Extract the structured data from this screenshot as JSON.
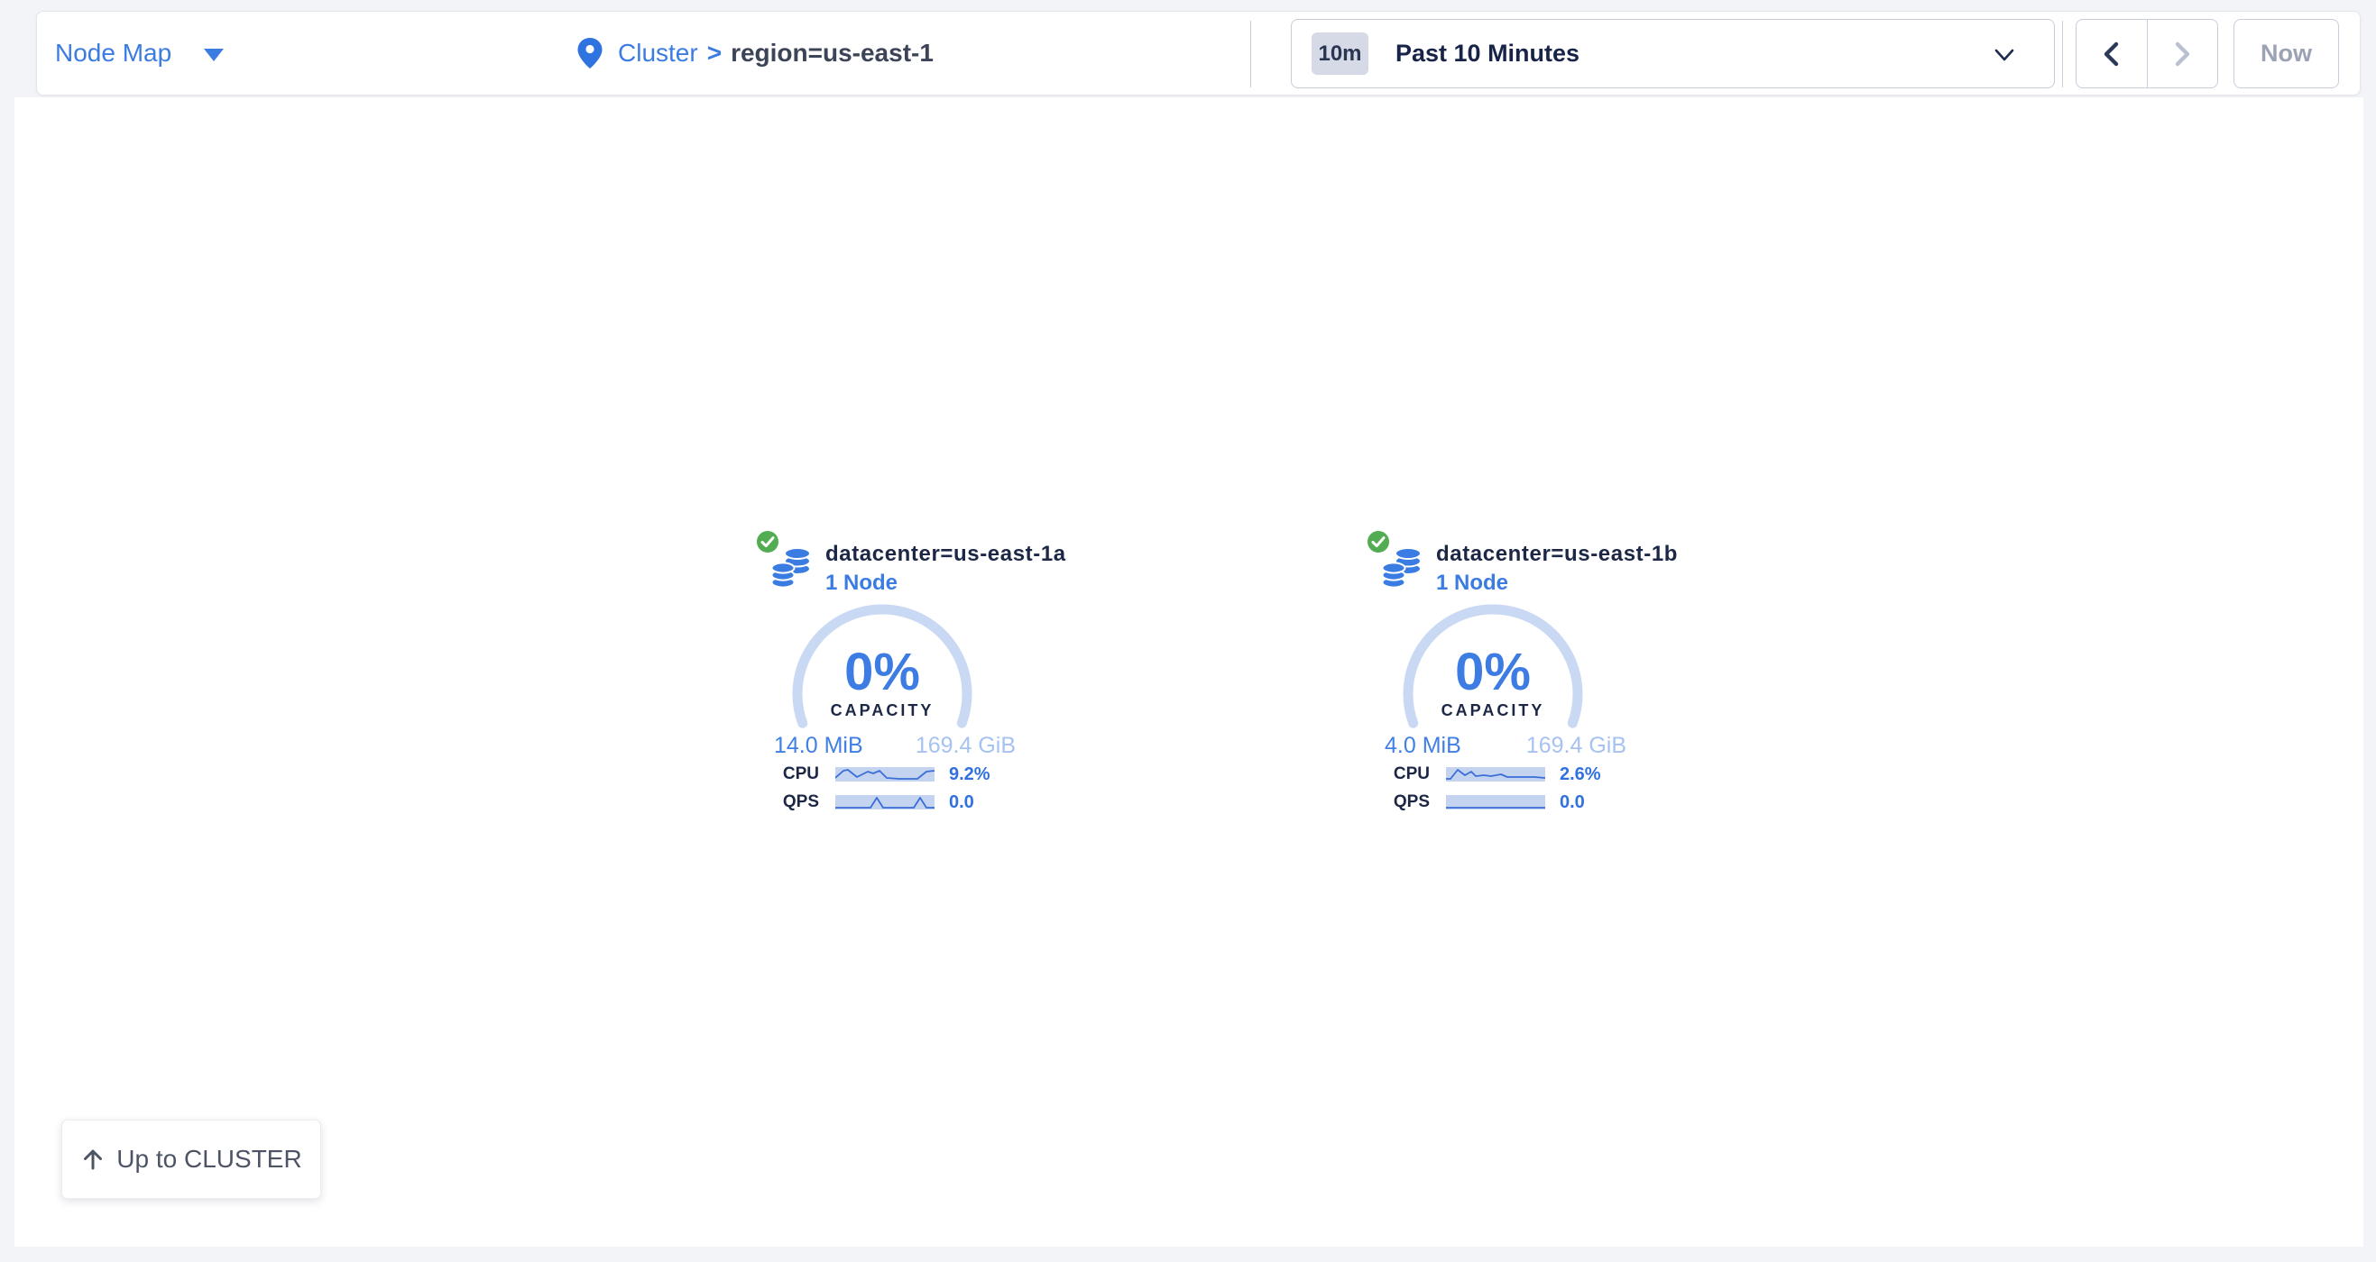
{
  "header": {
    "view_menu": {
      "label": "Node Map"
    },
    "breadcrumb": {
      "link": "Cluster",
      "separator": ">",
      "current": "region=us-east-1"
    },
    "time_selector": {
      "badge": "10m",
      "selected": "Past 10 Minutes"
    },
    "time_nav": {
      "now_label": "Now"
    }
  },
  "colors": {
    "accent_blue": "#3b7ce2",
    "status_green": "#52ad52",
    "gauge_ring": "#c9d8f3",
    "sparkline_bg": "#c3d3f0",
    "navy_text": "#1c2746",
    "disabled_gray": "#9aa2b4"
  },
  "datacenters": [
    {
      "title": "datacenter=us-east-1a",
      "subtitle": "1 Node",
      "capacity_pct": "0%",
      "capacity_label": "CAPACITY",
      "capacity_used": "14.0 MiB",
      "capacity_total": "169.4 GiB",
      "metrics": [
        {
          "label": "CPU",
          "value": "9.2%",
          "spark": [
            [
              0,
              12
            ],
            [
              9,
              4
            ],
            [
              14,
              3
            ],
            [
              24,
              11
            ],
            [
              36,
              5
            ],
            [
              42,
              7
            ],
            [
              49,
              4
            ],
            [
              57,
              12
            ],
            [
              71,
              13
            ],
            [
              91,
              13
            ],
            [
              101,
              5
            ],
            [
              110,
              4
            ]
          ]
        },
        {
          "label": "QPS",
          "value": "0.0",
          "spark": [
            [
              0,
              14
            ],
            [
              39,
              14
            ],
            [
              46,
              3
            ],
            [
              53,
              14
            ],
            [
              87,
              14
            ],
            [
              94,
              3
            ],
            [
              101,
              14
            ],
            [
              110,
              14
            ]
          ]
        }
      ]
    },
    {
      "title": "datacenter=us-east-1b",
      "subtitle": "1 Node",
      "capacity_pct": "0%",
      "capacity_label": "CAPACITY",
      "capacity_used": "4.0 MiB",
      "capacity_total": "169.4 GiB",
      "metrics": [
        {
          "label": "CPU",
          "value": "2.6%",
          "spark": [
            [
              0,
              13
            ],
            [
              5,
              13
            ],
            [
              13,
              3
            ],
            [
              21,
              9
            ],
            [
              28,
              5
            ],
            [
              33,
              10
            ],
            [
              42,
              9
            ],
            [
              50,
              10
            ],
            [
              61,
              8
            ],
            [
              68,
              11
            ],
            [
              85,
              11
            ],
            [
              98,
              11
            ],
            [
              110,
              12
            ]
          ]
        },
        {
          "label": "QPS",
          "value": "0.0",
          "spark": [
            [
              0,
              14
            ],
            [
              110,
              14
            ]
          ]
        }
      ]
    }
  ],
  "up_button": {
    "label": "Up to CLUSTER"
  }
}
